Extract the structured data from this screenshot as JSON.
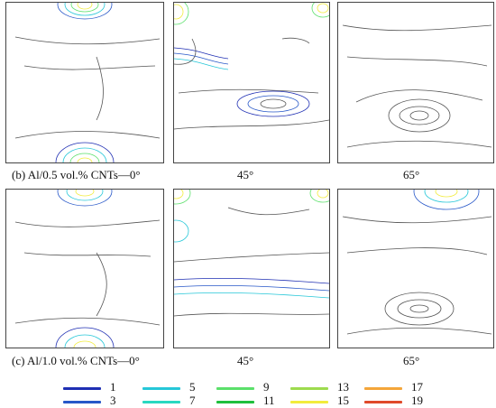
{
  "captions": {
    "row_b_0": "(b) Al/0.5 vol.% CNTs—0°",
    "row_b_45": "45°",
    "row_b_65": "65°",
    "row_c_0": "(c) Al/1.0 vol.% CNTs—0°",
    "row_c_45": "45°",
    "row_c_65": "65°"
  },
  "legend": [
    {
      "label": "1",
      "color": "#1f2fb3"
    },
    {
      "label": "3",
      "color": "#2757c8"
    },
    {
      "label": "5",
      "color": "#26c7d8"
    },
    {
      "label": "7",
      "color": "#28d8c0"
    },
    {
      "label": "9",
      "color": "#5be06b"
    },
    {
      "label": "11",
      "color": "#1fbf3c"
    },
    {
      "label": "13",
      "color": "#9ddb4e"
    },
    {
      "label": "15",
      "color": "#f2ec3c"
    },
    {
      "label": "17",
      "color": "#f4a63a"
    },
    {
      "label": "19",
      "color": "#e04a2a"
    }
  ],
  "colors": {
    "contour": "#555555",
    "panel_border": "#444444"
  }
}
